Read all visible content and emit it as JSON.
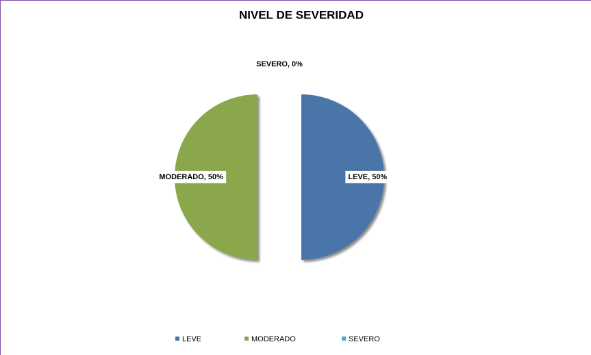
{
  "chart_data": {
    "type": "pie",
    "title": "NIVEL DE SEVERIDAD",
    "categories": [
      "LEVE",
      "MODERADO",
      "SEVERO"
    ],
    "values": [
      50,
      50,
      0
    ],
    "value_labels": [
      "LEVE, 50%",
      "MODERADO, 50%",
      "SEVERO, 0%"
    ],
    "colors": [
      "#4a74a8",
      "#8aa84b",
      "#4bacc6"
    ],
    "legend": "bottom"
  }
}
